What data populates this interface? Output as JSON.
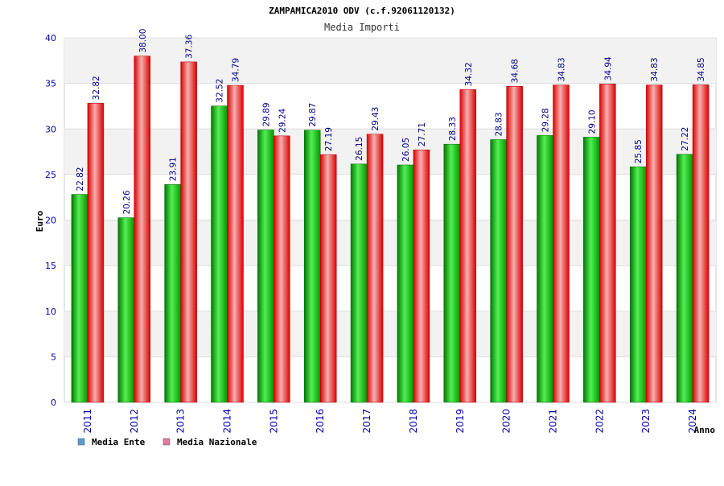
{
  "chart_data": {
    "type": "bar",
    "title": "ZAMPAMICA2010 ODV (c.f.92061120132)",
    "subtitle": "Media Importi",
    "xlabel": "Anno",
    "ylabel": "Euro",
    "ylim": [
      0,
      40
    ],
    "yticks": [
      0,
      5,
      10,
      15,
      20,
      25,
      30,
      35,
      40
    ],
    "categories": [
      "2011",
      "2012",
      "2013",
      "2014",
      "2015",
      "2016",
      "2017",
      "2018",
      "2019",
      "2020",
      "2021",
      "2022",
      "2023",
      "2024"
    ],
    "series": [
      {
        "name": "Media Ente",
        "values": [
          22.82,
          20.26,
          23.91,
          32.52,
          29.89,
          29.87,
          26.15,
          26.05,
          28.33,
          28.83,
          29.28,
          29.1,
          25.85,
          27.22
        ],
        "labels": [
          "22.82",
          "20.26",
          "23.91",
          "32.52",
          "29.89",
          "29.87",
          "26.15",
          "26.05",
          "28.33",
          "28.83",
          "29.28",
          "29.10",
          "25.85",
          "27.22"
        ]
      },
      {
        "name": "Media Nazionale",
        "values": [
          32.82,
          38.0,
          37.36,
          34.79,
          29.24,
          27.19,
          29.43,
          27.71,
          34.32,
          34.68,
          34.83,
          34.94,
          34.83,
          34.85
        ],
        "labels": [
          "32.82",
          "38.00",
          "37.36",
          "34.79",
          "29.24",
          "27.19",
          "29.43",
          "27.71",
          "34.32",
          "34.68",
          "34.83",
          "34.94",
          "34.83",
          "34.85"
        ]
      }
    ],
    "legend": [
      {
        "name": "Media Ente",
        "color": "#5b9bd5"
      },
      {
        "name": "Media Nazionale",
        "color": "#e07aa0"
      }
    ],
    "legend_position": "bottom-left",
    "grid": true,
    "colors": {
      "series1": "#00aa00",
      "series1_light": "#88ee88",
      "series2": "#ee0000",
      "series2_light": "#f5b5b5",
      "tick_text": "#0000aa",
      "label_text": "#000088",
      "band": "#f2f2f2"
    }
  }
}
